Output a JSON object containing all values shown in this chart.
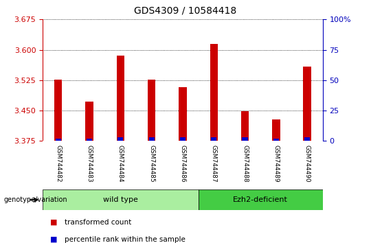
{
  "title": "GDS4309 / 10584418",
  "samples": [
    "GSM744482",
    "GSM744483",
    "GSM744484",
    "GSM744485",
    "GSM744486",
    "GSM744487",
    "GSM744488",
    "GSM744489",
    "GSM744490"
  ],
  "transformed_count": [
    3.527,
    3.473,
    3.585,
    3.527,
    3.508,
    3.615,
    3.449,
    3.428,
    3.558
  ],
  "percentile_rank": [
    2.0,
    2.0,
    3.0,
    3.0,
    3.0,
    3.0,
    3.0,
    2.0,
    3.0
  ],
  "y_min": 3.375,
  "y_max": 3.675,
  "y_ticks_left": [
    3.375,
    3.45,
    3.525,
    3.6,
    3.675
  ],
  "y_ticks_right": [
    0,
    25,
    50,
    75,
    100
  ],
  "bar_color_red": "#cc0000",
  "bar_color_blue": "#0000cc",
  "left_tick_color": "#cc0000",
  "right_tick_color": "#0000bb",
  "groups": [
    {
      "label": "wild type",
      "start": 0,
      "end": 5,
      "color": "#aaeea0"
    },
    {
      "label": "Ezh2-deficient",
      "start": 5,
      "end": 9,
      "color": "#44cc44"
    }
  ],
  "genotype_label": "genotype/variation",
  "legend_items": [
    {
      "color": "#cc0000",
      "label": "transformed count"
    },
    {
      "color": "#0000cc",
      "label": "percentile rank within the sample"
    }
  ],
  "red_bar_width": 0.25,
  "blue_bar_width": 0.18,
  "background_color": "#ffffff",
  "plot_area_bg": "#ffffff",
  "tick_area_bg": "#cccccc"
}
